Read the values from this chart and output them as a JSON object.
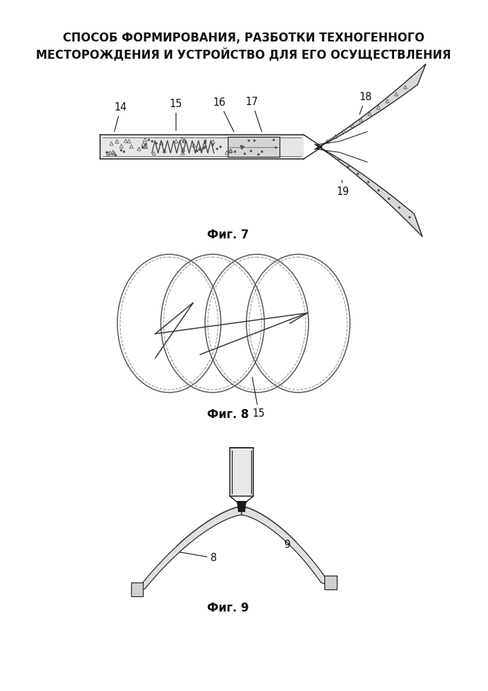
{
  "title_line1": "СПОСОБ ФОРМИРОВАНИЯ, РАЗБОТКИ ТЕХНОГЕННОГО",
  "title_line2": "МЕСТОРОЖДЕНИЯ И УСТРОЙСТВО ДЛЯ ЕГО ОСУЩЕСТВЛЕНИЯ",
  "fig7_label": "Фиг. 7",
  "fig8_label": "Фиг. 8",
  "fig9_label": "Фиг. 9",
  "label_14": "14",
  "label_15": "15",
  "label_15b": "15",
  "label_16": "16",
  "label_17": "17",
  "label_18": "18",
  "label_19": "19",
  "label_8": "8",
  "label_9": "9",
  "bg_color": "#ffffff",
  "line_color": "#555555",
  "line_color_dark": "#222222"
}
